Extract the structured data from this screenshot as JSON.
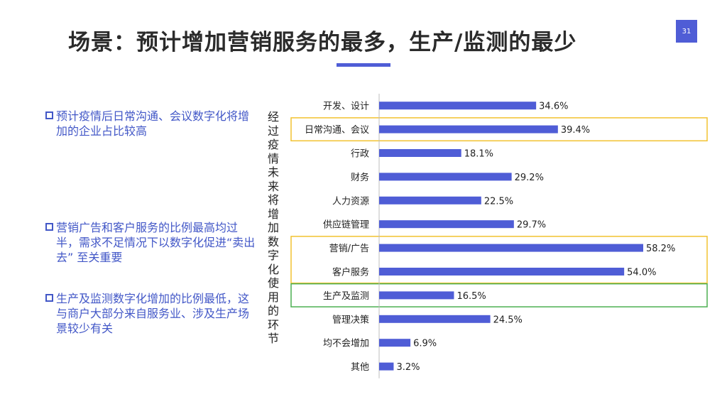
{
  "slide": {
    "title": "场景：预计增加营销服务的最多，生产/监测的最少",
    "page_number": "31"
  },
  "notes": [
    "预计疫情后日常沟通、会议数字化将增加的企业占比较高",
    "营销广告和客户服务的比例最高均过半，需求不足情况下以数字化促进“卖出去” 至关重要",
    "生产及监测数字化增加的比例最低，这与商户大部分来自服务业、涉及生产场景较少有关"
  ],
  "chart_data": {
    "type": "bar",
    "orientation": "horizontal",
    "title": "",
    "ylabel": "经过疫情未来将增加数字化使用的环节",
    "categories": [
      "开发、设计",
      "日常沟通、会议",
      "行政",
      "财务",
      "人力资源",
      "供应链管理",
      "营销/广告",
      "客户服务",
      "生产及监测",
      "管理决策",
      "均不会增加",
      "其他"
    ],
    "values": [
      34.6,
      39.4,
      18.1,
      29.2,
      22.5,
      29.7,
      58.2,
      54.0,
      16.5,
      24.5,
      6.9,
      3.2
    ],
    "value_labels": [
      "34.6%",
      "39.4%",
      "18.1%",
      "29.2%",
      "22.5%",
      "29.7%",
      "58.2%",
      "54.0%",
      "16.5%",
      "24.5%",
      "6.9%",
      "3.2%"
    ],
    "xlim": [
      0,
      65
    ],
    "grid": false,
    "legend": "none",
    "bar_color": "#4f5dd6",
    "highlights": [
      {
        "categories": [
          "日常沟通、会议"
        ],
        "color": "#f2c230"
      },
      {
        "categories": [
          "营销/广告",
          "客户服务"
        ],
        "color": "#f2c230"
      },
      {
        "categories": [
          "生产及监测"
        ],
        "color": "#4caf50"
      }
    ]
  }
}
